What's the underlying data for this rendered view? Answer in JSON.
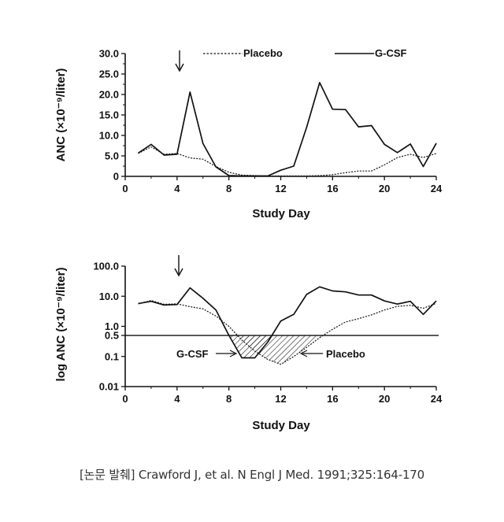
{
  "chart_data": [
    {
      "type": "line",
      "ylabel": "ANC (×10⁻⁹/liter)",
      "xlabel": "Study Day",
      "xlim": [
        0,
        24
      ],
      "ylim": [
        0,
        30
      ],
      "x_ticks": [
        0,
        4,
        8,
        12,
        16,
        20,
        24
      ],
      "y_ticks": [
        "0",
        "5.0",
        "10.0",
        "15.0",
        "20.0",
        "25.0",
        "30.0"
      ],
      "y_tick_values": [
        0,
        5,
        10,
        15,
        20,
        25,
        30
      ],
      "legend": "top",
      "marker_arrow_day": 4,
      "series": [
        {
          "name": "Placebo",
          "style": "dotted",
          "x": [
            1,
            2,
            3,
            4,
            5,
            6,
            7,
            8,
            9,
            10,
            11,
            12,
            13,
            14,
            15,
            16,
            17,
            18,
            19,
            20,
            21,
            22,
            23,
            24
          ],
          "values": [
            5.6,
            7.2,
            5.4,
            5.6,
            4.5,
            4.2,
            2.4,
            1.0,
            0.3,
            0.2,
            0.1,
            0.1,
            0.1,
            0.1,
            0.2,
            0.4,
            0.9,
            1.3,
            1.3,
            2.8,
            4.6,
            5.4,
            4.6,
            5.6
          ]
        },
        {
          "name": "G-CSF",
          "style": "solid",
          "x": [
            1,
            2,
            3,
            4,
            5,
            6,
            7,
            8,
            9,
            10,
            11,
            12,
            13,
            14,
            15,
            16,
            17,
            18,
            19,
            20,
            21,
            22,
            23,
            24
          ],
          "values": [
            5.7,
            7.8,
            5.2,
            5.4,
            20.6,
            8.0,
            2.3,
            0.2,
            0.1,
            0.1,
            0.1,
            1.5,
            2.5,
            12.0,
            22.9,
            16.4,
            16.3,
            12.1,
            12.4,
            7.8,
            5.8,
            7.9,
            2.4,
            8.1
          ]
        }
      ]
    },
    {
      "type": "line",
      "ylabel": "log ANC (×10⁻⁹/liter)",
      "xlabel": "Study Day",
      "yscale": "log",
      "xlim": [
        0,
        24
      ],
      "ylim": [
        0.01,
        100
      ],
      "x_ticks": [
        0,
        4,
        8,
        12,
        16,
        20,
        24
      ],
      "y_ticks": [
        "0.01",
        "0.1",
        "0.5",
        "1.0",
        "10.0",
        "100.0"
      ],
      "y_tick_values": [
        0.01,
        0.1,
        0.5,
        1,
        10,
        100
      ],
      "reference_line": 0.5,
      "marker_arrow_day": 4,
      "annotations": [
        "G-CSF",
        "Placebo"
      ],
      "series": [
        {
          "name": "Placebo",
          "style": "dotted",
          "x": [
            1,
            2,
            3,
            4,
            5,
            6,
            7,
            8,
            9,
            10,
            11,
            12,
            13,
            14,
            15,
            16,
            17,
            18,
            19,
            20,
            21,
            22,
            23,
            24
          ],
          "values": [
            5.6,
            7.2,
            5.4,
            5.6,
            4.5,
            3.8,
            2.2,
            1.0,
            0.35,
            0.15,
            0.08,
            0.055,
            0.1,
            0.2,
            0.42,
            0.8,
            1.4,
            1.8,
            2.4,
            3.5,
            4.6,
            5.0,
            4.0,
            5.8
          ]
        },
        {
          "name": "G-CSF",
          "style": "solid",
          "x": [
            1,
            2,
            3,
            4,
            5,
            6,
            7,
            8,
            9,
            10,
            11,
            12,
            13,
            14,
            15,
            16,
            17,
            18,
            19,
            20,
            21,
            22,
            23,
            24
          ],
          "values": [
            5.7,
            6.8,
            5.1,
            5.3,
            19.0,
            8.5,
            3.5,
            0.5,
            0.09,
            0.09,
            0.3,
            1.5,
            2.5,
            11.5,
            20.5,
            15.0,
            14.0,
            11.0,
            11.0,
            7.0,
            5.5,
            6.8,
            2.5,
            7.0
          ]
        }
      ]
    }
  ],
  "caption": "[논문 발췌] Crawford J, et al. N Engl J Med. 1991;325:164-170"
}
